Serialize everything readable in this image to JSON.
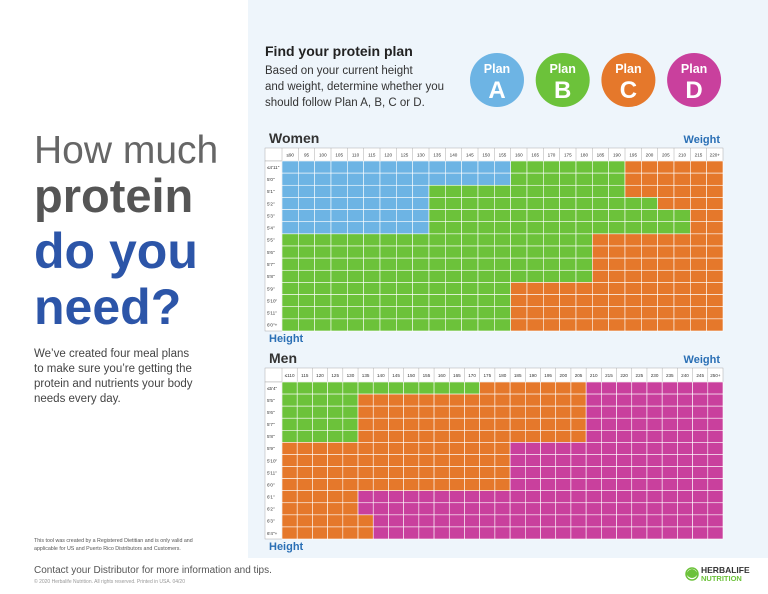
{
  "headline": {
    "line1": "How much",
    "line2": "protein",
    "line3": "do you",
    "line4": "need?"
  },
  "intro": [
    "We’ve created four meal plans",
    "to make sure you’re getting the",
    "protein and nutrients your body",
    "needs every day."
  ],
  "disclaimer": [
    "This tool was created by a Registered Dietitian and is only valid and",
    "applicable for US and Puerto Rico Distributors and Customers."
  ],
  "plan_section": {
    "title": "Find your protein plan",
    "text": [
      "Based on your current height",
      "and weight, determine whether you",
      "should follow Plan A, B, C or D."
    ],
    "plans": [
      {
        "label": "Plan",
        "letter": "A",
        "color": "#6db4e4"
      },
      {
        "label": "Plan",
        "letter": "B",
        "color": "#6cc23a"
      },
      {
        "label": "Plan",
        "letter": "C",
        "color": "#e5782b"
      },
      {
        "label": "Plan",
        "letter": "D",
        "color": "#c9409d"
      }
    ]
  },
  "women": {
    "title": "Women",
    "weight_label": "Weight",
    "height_label": "Height",
    "weights": [
      "≤90",
      "95",
      "100",
      "105",
      "110",
      "115",
      "120",
      "125",
      "130",
      "135",
      "140",
      "145",
      "150",
      "155",
      "160",
      "165",
      "170",
      "175",
      "180",
      "185",
      "190",
      "195",
      "200",
      "205",
      "210",
      "215",
      "220+"
    ],
    "heights": [
      "≤4'11\"",
      "5'0\"",
      "5'1\"",
      "5'2\"",
      "5'3\"",
      "5'4\"",
      "5'5\"",
      "5'6\"",
      "5'7\"",
      "5'8\"",
      "5'9\"",
      "5'10\"",
      "5'11\"",
      "6'0\"+"
    ],
    "rows": [
      "AAAAAAAAAAAAAABBBBBBBCCCCCC",
      "AAAAAAAAAAAAAABBBBBBBCCCCCC",
      "AAAAAAAAABBBBBBBBBBBBCCCCCC",
      "AAAAAAAAABBBBBBBBBBBBBBCCCC",
      "AAAAAAAAABBBBBBBBBBBBBBBBCC",
      "AAAAAAAAABBBBBBBBBBBBBBBBCC",
      "BBBBBBBBBBBBBBBBBBBCCCCCCCC",
      "BBBBBBBBBBBBBBBBBBBCCCCCCCC",
      "BBBBBBBBBBBBBBBBBBBCCCCCCCC",
      "BBBBBBBBBBBBBBBBBBBCCCCCCCC",
      "BBBBBBBBBBBBBBCCCCCCCCCCCCC",
      "BBBBBBBBBBBBBBCCCCCCCCCCCCC",
      "BBBBBBBBBBBBBBCCCCCCCCCCCCC",
      "BBBBBBBBBBBBBBCCCCCCCCCCCCC"
    ]
  },
  "men": {
    "title": "Men",
    "weight_label": "Weight",
    "height_label": "Height",
    "weights": [
      "≤110",
      "115",
      "120",
      "125",
      "130",
      "135",
      "140",
      "145",
      "150",
      "155",
      "160",
      "165",
      "170",
      "175",
      "180",
      "185",
      "190",
      "195",
      "200",
      "205",
      "210",
      "215",
      "220",
      "225",
      "230",
      "235",
      "240",
      "245",
      "250+"
    ],
    "heights": [
      "≤5'4\"",
      "5'5\"",
      "5'6\"",
      "5'7\"",
      "5'8\"",
      "5'9\"",
      "5'10\"",
      "5'11\"",
      "6'0\"",
      "6'1\"",
      "6'2\"",
      "6'3\"",
      "6'4\"+"
    ],
    "rows": [
      "BBBBBBBBBBBBBCCCCCCCDDDDDDDDD",
      "BBBBBCCCCCCCCCCCCCCCDDDDDDDDD",
      "BBBBBCCCCCCCCCCCCCCCDDDDDDDDD",
      "BBBBBCCCCCCCCCCCCCCCDDDDDDDDD",
      "BBBBBCCCCCCCCCCCCCCCDDDDDDDDD",
      "CCCCCCCCCCCCCCCDDDDDDDDDDDDDD",
      "CCCCCCCCCCCCCCCDDDDDDDDDDDDDD",
      "CCCCCCCCCCCCCCCDDDDDDDDDDDDDD",
      "CCCCCCCCCCCCCCCDDDDDDDDDDDDDD",
      "CCCCCDDDDDDDDDDDDDDDDDDDDDDDD",
      "CCCCCDDDDDDDDDDDDDDDDDDDDDDDD",
      "CCCCCCDDDDDDDDDDDDDDDDDDDDDDD",
      "CCCCCCDDDDDDDDDDDDDDDDDDDDDDD"
    ]
  },
  "footer": {
    "contact": "Contact your Distributor for more information and tips.",
    "copyright": "© 2020 Herbalife Nutrition. All rights reserved. Printed in USA. 04/20",
    "logo_line1": "HERBALIFE",
    "logo_line2": "NUTRITION"
  }
}
